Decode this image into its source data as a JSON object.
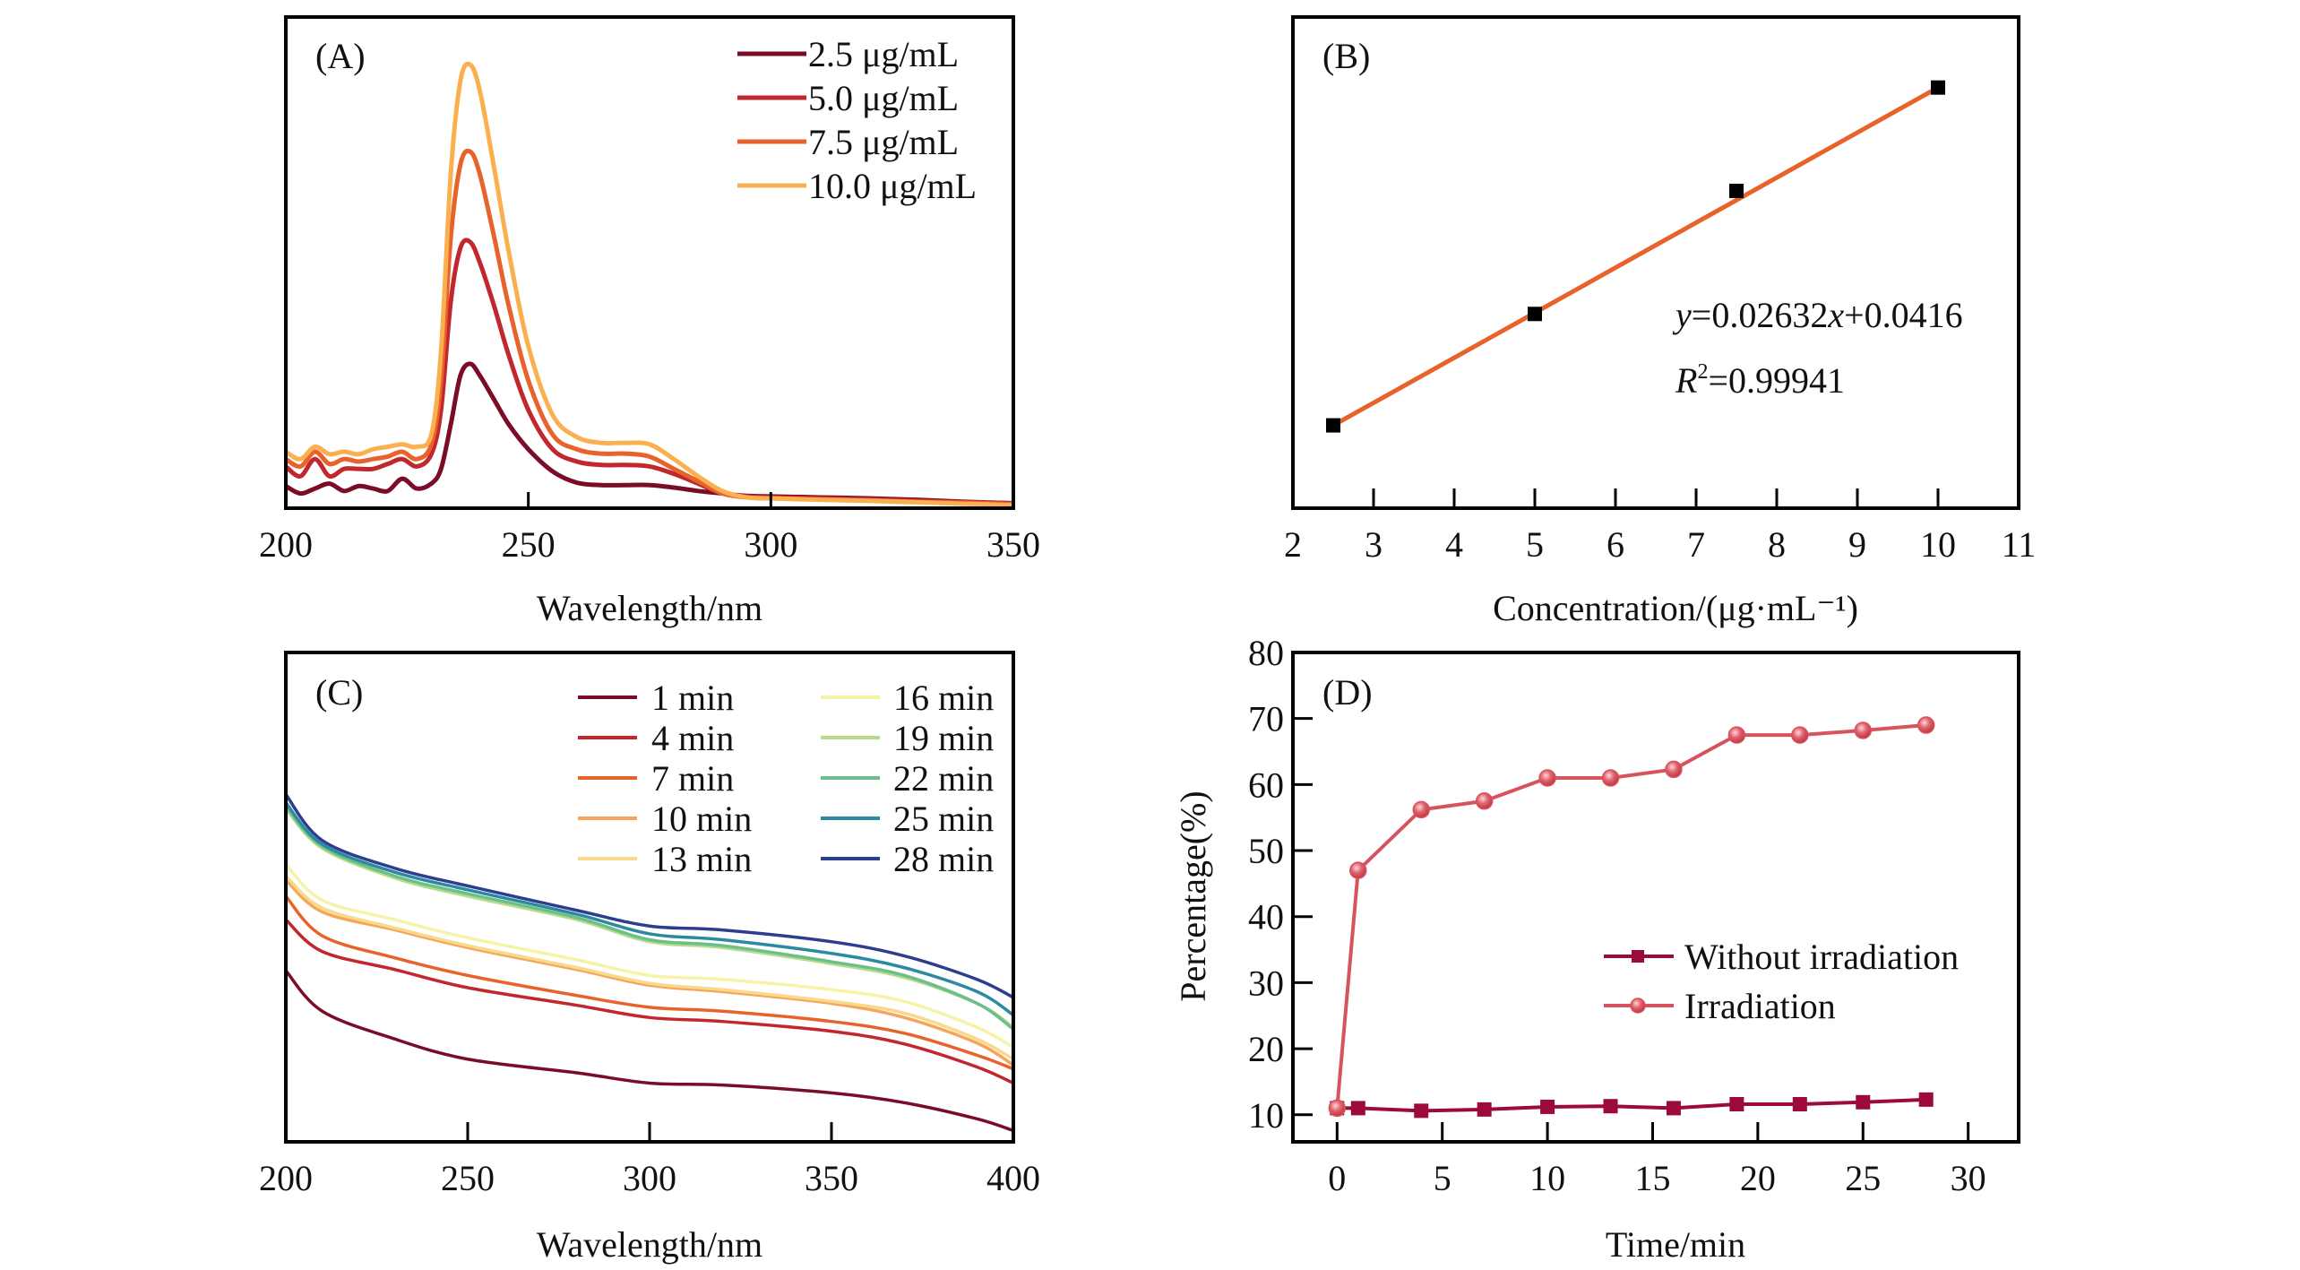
{
  "figure": {
    "panels": [
      "A",
      "B",
      "C",
      "D"
    ]
  },
  "chart_data": [
    {
      "id": "A",
      "type": "line",
      "panel_label": "(A)",
      "title": "",
      "xlabel": "Wavelength/nm",
      "ylabel": "",
      "xlim": [
        200,
        350
      ],
      "ylim": [
        0,
        1
      ],
      "y_units": "relative absorbance (no y tick labels shown)",
      "xticks": [
        200,
        250,
        300,
        350
      ],
      "xtick_labels": [
        "200",
        "250",
        "300",
        "350"
      ],
      "grid": false,
      "legend_position": "top-right",
      "series": [
        {
          "name": "2.5 μg/mL",
          "color": "#7a0c28",
          "x": [
            200,
            203,
            206,
            209,
            212,
            215,
            218,
            221,
            224,
            227,
            230,
            232,
            234,
            236,
            238,
            240,
            243,
            246,
            250,
            255,
            260,
            265,
            270,
            275,
            280,
            285,
            290,
            295,
            300,
            310,
            320,
            330,
            340,
            350
          ],
          "y": [
            0.045,
            0.03,
            0.04,
            0.05,
            0.035,
            0.045,
            0.04,
            0.035,
            0.06,
            0.04,
            0.05,
            0.08,
            0.17,
            0.27,
            0.294,
            0.27,
            0.22,
            0.17,
            0.12,
            0.075,
            0.052,
            0.047,
            0.047,
            0.047,
            0.042,
            0.035,
            0.03,
            0.025,
            0.024,
            0.022,
            0.02,
            0.017,
            0.013,
            0.01
          ]
        },
        {
          "name": "5.0 μg/mL",
          "color": "#c1272d",
          "x": [
            200,
            203,
            206,
            209,
            212,
            215,
            218,
            221,
            224,
            227,
            230,
            232,
            234,
            236,
            238,
            240,
            243,
            246,
            250,
            255,
            260,
            265,
            270,
            275,
            280,
            285,
            290,
            295,
            300,
            310,
            320,
            330,
            340,
            350
          ],
          "y": [
            0.085,
            0.065,
            0.1,
            0.065,
            0.08,
            0.08,
            0.08,
            0.09,
            0.1,
            0.085,
            0.11,
            0.2,
            0.42,
            0.53,
            0.542,
            0.5,
            0.41,
            0.31,
            0.2,
            0.12,
            0.095,
            0.088,
            0.088,
            0.085,
            0.07,
            0.05,
            0.03,
            0.024,
            0.022,
            0.02,
            0.018,
            0.015,
            0.012,
            0.01
          ]
        },
        {
          "name": "7.5 μg/mL",
          "color": "#e8632b",
          "x": [
            200,
            203,
            206,
            209,
            212,
            215,
            218,
            221,
            224,
            227,
            230,
            232,
            234,
            236,
            238,
            240,
            243,
            246,
            250,
            255,
            260,
            265,
            270,
            275,
            280,
            285,
            290,
            295,
            300,
            310,
            320,
            330,
            340,
            350
          ],
          "y": [
            0.1,
            0.085,
            0.115,
            0.09,
            0.1,
            0.095,
            0.1,
            0.105,
            0.115,
            0.1,
            0.13,
            0.26,
            0.55,
            0.7,
            0.726,
            0.68,
            0.55,
            0.41,
            0.26,
            0.15,
            0.12,
            0.111,
            0.111,
            0.105,
            0.08,
            0.055,
            0.03,
            0.022,
            0.02,
            0.018,
            0.016,
            0.013,
            0.011,
            0.008
          ]
        },
        {
          "name": "10.0 μg/mL",
          "color": "#fbb050",
          "x": [
            200,
            203,
            206,
            209,
            212,
            215,
            218,
            221,
            224,
            227,
            230,
            232,
            234,
            236,
            238,
            240,
            243,
            246,
            250,
            255,
            260,
            265,
            270,
            275,
            280,
            285,
            290,
            295,
            300,
            310,
            320,
            330,
            340,
            350
          ],
          "y": [
            0.115,
            0.1,
            0.125,
            0.11,
            0.115,
            0.11,
            0.12,
            0.125,
            0.13,
            0.125,
            0.15,
            0.32,
            0.68,
            0.87,
            0.903,
            0.85,
            0.69,
            0.52,
            0.33,
            0.19,
            0.145,
            0.133,
            0.133,
            0.13,
            0.1,
            0.065,
            0.035,
            0.022,
            0.02,
            0.017,
            0.015,
            0.012,
            0.009,
            0.006
          ]
        }
      ]
    },
    {
      "id": "B",
      "type": "scatter",
      "panel_label": "(B)",
      "title": "",
      "xlabel": "Concentration/(μg·mL⁻¹)",
      "ylabel": "",
      "xlim": [
        2,
        11
      ],
      "ylim": [
        0.059,
        0.346
      ],
      "xticks": [
        2,
        3,
        4,
        5,
        6,
        7,
        8,
        9,
        10,
        11
      ],
      "xtick_labels": [
        "2",
        "3",
        "4",
        "5",
        "6",
        "7",
        "8",
        "9",
        "10",
        "11"
      ],
      "grid": false,
      "points": {
        "x": [
          2.5,
          5,
          7.5,
          10
        ],
        "y": [
          0.1074,
          0.1725,
          0.2444,
          0.3048
        ],
        "color": "#000000"
      },
      "fit": {
        "slope": 0.02632,
        "intercept": 0.0416,
        "x_range": [
          2.5,
          10
        ],
        "color": "#e8632b"
      },
      "annotations": {
        "equation_y": "y",
        "equation_rest_1": "=0.02632",
        "equation_x": "x",
        "equation_rest_2": "+0.0416",
        "r2_label": "R",
        "r2_sup": "2",
        "r2_value": "=0.99941"
      }
    },
    {
      "id": "C",
      "type": "line",
      "panel_label": "(C)",
      "title": "",
      "xlabel": "Wavelength/nm",
      "ylabel": "",
      "xlim": [
        200,
        400
      ],
      "ylim": [
        0,
        1
      ],
      "y_units": "relative absorbance (no y tick labels shown)",
      "xticks": [
        200,
        250,
        300,
        350,
        400
      ],
      "xtick_labels": [
        "200",
        "250",
        "300",
        "350",
        "400"
      ],
      "grid": false,
      "legend_position": "top-right",
      "x": [
        200,
        210,
        230,
        250,
        280,
        300,
        320,
        350,
        370,
        390,
        400
      ],
      "series": [
        {
          "name": "1 min",
          "color": "#7a0c28",
          "y": [
            0.35,
            0.267,
            0.21,
            0.169,
            0.141,
            0.12,
            0.116,
            0.1,
            0.08,
            0.047,
            0.023
          ]
        },
        {
          "name": "4 min",
          "color": "#c1272d",
          "y": [
            0.454,
            0.389,
            0.352,
            0.315,
            0.279,
            0.254,
            0.246,
            0.226,
            0.2,
            0.153,
            0.12
          ]
        },
        {
          "name": "7 min",
          "color": "#e8632b",
          "y": [
            0.502,
            0.421,
            0.376,
            0.34,
            0.299,
            0.275,
            0.267,
            0.246,
            0.222,
            0.177,
            0.149
          ]
        },
        {
          "name": "10 min",
          "color": "#f4a65a",
          "y": [
            0.535,
            0.47,
            0.433,
            0.397,
            0.352,
            0.32,
            0.307,
            0.283,
            0.254,
            0.202,
            0.157
          ]
        },
        {
          "name": "13 min",
          "color": "#f9d98b",
          "y": [
            0.543,
            0.478,
            0.437,
            0.401,
            0.356,
            0.324,
            0.311,
            0.287,
            0.263,
            0.21,
            0.169
          ]
        },
        {
          "name": "16 min",
          "color": "#f5f3a6",
          "y": [
            0.567,
            0.494,
            0.454,
            0.417,
            0.372,
            0.34,
            0.332,
            0.311,
            0.287,
            0.234,
            0.193
          ]
        },
        {
          "name": "19 min",
          "color": "#b5dc8a",
          "y": [
            0.681,
            0.6,
            0.539,
            0.502,
            0.454,
            0.409,
            0.397,
            0.364,
            0.336,
            0.283,
            0.234
          ]
        },
        {
          "name": "22 min",
          "color": "#6cbf8a",
          "y": [
            0.685,
            0.604,
            0.543,
            0.507,
            0.458,
            0.413,
            0.401,
            0.368,
            0.34,
            0.283,
            0.23
          ]
        },
        {
          "name": "25 min",
          "color": "#2c8aa0",
          "y": [
            0.693,
            0.608,
            0.551,
            0.515,
            0.465,
            0.425,
            0.413,
            0.385,
            0.356,
            0.307,
            0.259
          ]
        },
        {
          "name": "28 min",
          "color": "#2d3e8f",
          "y": [
            0.71,
            0.616,
            0.559,
            0.523,
            0.473,
            0.441,
            0.433,
            0.409,
            0.38,
            0.332,
            0.295
          ]
        }
      ]
    },
    {
      "id": "D",
      "type": "line",
      "panel_label": "(D)",
      "title": "",
      "xlabel": "Time/min",
      "ylabel": "Percentage(%)",
      "xlim": [
        -2.1,
        32.4
      ],
      "ylim": [
        5.9,
        80
      ],
      "xticks": [
        0,
        5,
        10,
        15,
        20,
        25,
        30
      ],
      "xtick_labels": [
        "0",
        "5",
        "10",
        "15",
        "20",
        "25",
        "30"
      ],
      "yticks": [
        10,
        20,
        30,
        40,
        50,
        60,
        70,
        80
      ],
      "ytick_labels": [
        "10",
        "20",
        "30",
        "40",
        "50",
        "60",
        "70",
        "80"
      ],
      "grid": false,
      "legend_position": "center-right",
      "x": [
        0,
        1,
        4,
        7,
        10,
        13,
        16,
        19,
        22,
        25,
        28
      ],
      "series": [
        {
          "name": "Without irradiation",
          "marker": "square",
          "color": "#9b0a3b",
          "y": [
            11,
            11,
            10.6,
            10.8,
            11.2,
            11.3,
            11,
            11.6,
            11.6,
            11.9,
            12.3
          ]
        },
        {
          "name": "Irradiation",
          "marker": "circle",
          "color": "#d9535e",
          "y": [
            11,
            47,
            56.2,
            57.5,
            61,
            61,
            62.3,
            67.5,
            67.5,
            68.2,
            69
          ]
        }
      ]
    }
  ]
}
